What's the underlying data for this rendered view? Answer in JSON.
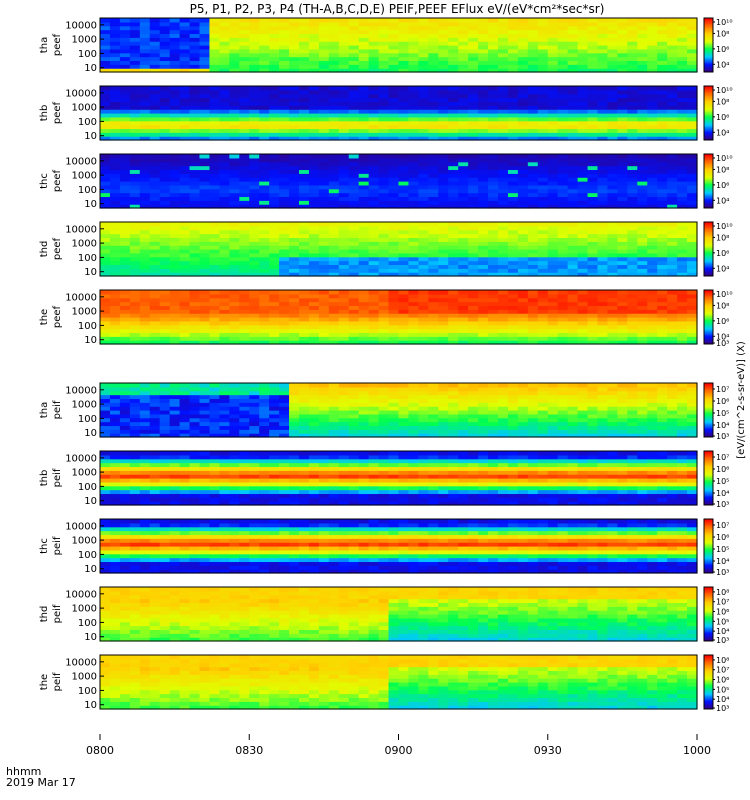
{
  "title": "P5, P1, P2, P3, P4 (TH-A,B,C,D,E) PEIF,PEEF EFlux eV/(eV*cm²*sec*sr)",
  "footer": {
    "time_label": "hhmm",
    "date_label": "2019 Mar 17"
  },
  "colorbar_unit_label": "[eV/(cm^2-s-sr-eV)] (X)",
  "chart_data": {
    "type": "heatmap",
    "x_ticks": [
      "0800",
      "0830",
      "0900",
      "0930",
      "1000"
    ],
    "x_range": [
      "08:00",
      "10:00"
    ],
    "y_scale": "log",
    "y_range": [
      5,
      30000
    ],
    "y_ticks": [
      "10",
      "100",
      "1000",
      "10000"
    ],
    "colormap": [
      "#3a0070",
      "#0010ff",
      "#00c8ff",
      "#00ff50",
      "#e0ff00",
      "#ffd000",
      "#ff7000",
      "#ff0000"
    ],
    "panels": [
      {
        "label1": "tha",
        "label2": "peef",
        "cb_ticks": [
          "10¹⁰",
          "10⁸",
          "10⁶",
          "10⁴"
        ],
        "cb_range": [
          3,
          10
        ]
      },
      {
        "label1": "thb",
        "label2": "peef",
        "cb_ticks": [
          "10¹⁰",
          "10⁸",
          "10⁶",
          "10⁴"
        ],
        "cb_range": [
          3,
          10
        ]
      },
      {
        "label1": "thc",
        "label2": "peef",
        "cb_ticks": [
          "10¹⁰",
          "10⁸",
          "10⁶",
          "10⁴"
        ],
        "cb_range": [
          3,
          10
        ]
      },
      {
        "label1": "thd",
        "label2": "peef",
        "cb_ticks": [
          "10¹⁰",
          "10⁸",
          "10⁶",
          "10⁴"
        ],
        "cb_range": [
          3,
          10
        ]
      },
      {
        "label1": "the",
        "label2": "peef",
        "cb_ticks": [
          "10¹⁰",
          "10⁸",
          "10⁶",
          "10⁴",
          "10³"
        ],
        "cb_range": [
          3,
          10
        ]
      },
      {
        "label1": "tha",
        "label2": "peif",
        "cb_ticks": [
          "10⁷",
          "10⁶",
          "10⁵",
          "10⁴",
          "10³"
        ],
        "cb_range": [
          3,
          7.5
        ]
      },
      {
        "label1": "thb",
        "label2": "peif",
        "cb_ticks": [
          "10⁷",
          "10⁶",
          "10⁵",
          "10⁴",
          "10³"
        ],
        "cb_range": [
          3,
          7.5
        ]
      },
      {
        "label1": "thc",
        "label2": "peif",
        "cb_ticks": [
          "10⁷",
          "10⁶",
          "10⁵",
          "10⁴",
          "10³"
        ],
        "cb_range": [
          3,
          7.5
        ]
      },
      {
        "label1": "thd",
        "label2": "peif",
        "cb_ticks": [
          "10⁸",
          "10⁷",
          "10⁶",
          "10⁵",
          "10⁴",
          "10³"
        ],
        "cb_range": [
          3,
          8.5
        ]
      },
      {
        "label1": "the",
        "label2": "peif",
        "cb_ticks": [
          "10⁸",
          "10⁷",
          "10⁶",
          "10⁵",
          "10⁴",
          "10³"
        ],
        "cb_range": [
          3,
          8.5
        ]
      }
    ],
    "grid": false,
    "legend": "colorbar-right"
  }
}
